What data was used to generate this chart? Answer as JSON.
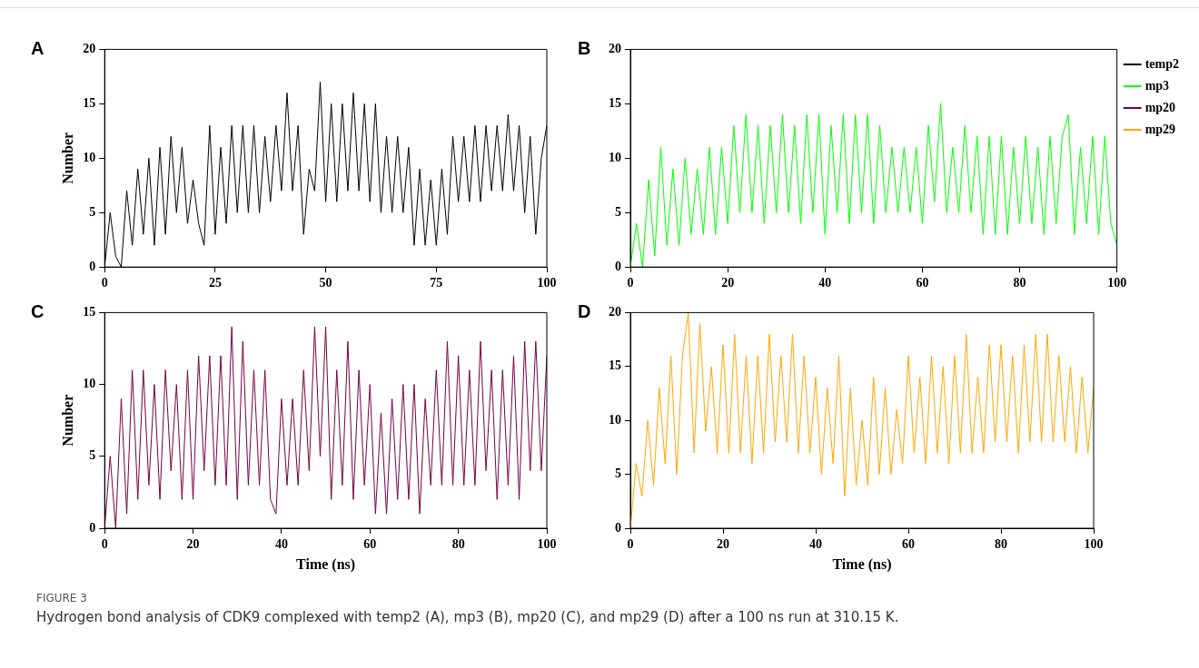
{
  "chart_data": [
    {
      "type": "line",
      "title": "A",
      "ylabel": "Number",
      "xlim": [
        0,
        100
      ],
      "ylim": [
        0,
        20
      ],
      "xticks": [
        0,
        25,
        50,
        75,
        100
      ],
      "yticks": [
        0,
        5,
        10,
        15,
        20
      ],
      "grid": false,
      "legend": false,
      "marker": "none",
      "x": [
        0,
        1.25,
        2.5,
        3.75,
        5,
        6.25,
        7.5,
        8.75,
        10,
        11.25,
        12.5,
        13.75,
        15,
        16.25,
        17.5,
        18.75,
        20,
        21.25,
        22.5,
        23.75,
        25,
        26.25,
        27.5,
        28.75,
        30,
        31.25,
        32.5,
        33.75,
        35,
        36.25,
        37.5,
        38.75,
        40,
        41.25,
        42.5,
        43.75,
        45,
        46.25,
        47.5,
        48.75,
        50,
        51.25,
        52.5,
        53.75,
        55,
        56.25,
        57.5,
        58.75,
        60,
        61.25,
        62.5,
        63.75,
        65,
        66.25,
        67.5,
        68.75,
        70,
        71.25,
        72.5,
        73.75,
        75,
        76.25,
        77.5,
        78.75,
        80,
        81.25,
        82.5,
        83.75,
        85,
        86.25,
        87.5,
        88.75,
        90,
        91.25,
        92.5,
        93.75,
        95,
        96.25,
        97.5,
        98.75,
        100
      ],
      "series": [
        {
          "name": "temp2",
          "color": "#000000",
          "values": [
            0,
            5,
            1,
            0,
            7,
            2,
            9,
            3,
            10,
            2,
            11,
            3,
            12,
            5,
            11,
            4,
            8,
            4,
            2,
            13,
            3,
            11,
            4,
            13,
            5,
            13,
            5,
            13,
            5,
            12,
            6,
            13,
            7,
            16,
            7,
            13,
            3,
            9,
            7,
            17,
            6,
            15,
            6,
            15,
            7,
            16,
            7,
            15,
            6,
            15,
            5,
            12,
            5,
            12,
            5,
            11,
            2,
            9,
            2,
            8,
            2,
            9,
            3,
            12,
            6,
            12,
            6,
            13,
            6,
            13,
            7,
            13,
            7,
            14,
            7,
            13,
            5,
            12,
            3,
            10,
            13
          ]
        }
      ]
    },
    {
      "type": "line",
      "title": "B",
      "xlim": [
        0,
        100
      ],
      "ylim": [
        0,
        20
      ],
      "xticks": [
        0,
        20,
        40,
        60,
        80,
        100
      ],
      "yticks": [
        0,
        5,
        10,
        15,
        20
      ],
      "grid": false,
      "legend": "right",
      "marker": "none",
      "x": [
        0,
        1.25,
        2.5,
        3.75,
        5,
        6.25,
        7.5,
        8.75,
        10,
        11.25,
        12.5,
        13.75,
        15,
        16.25,
        17.5,
        18.75,
        20,
        21.25,
        22.5,
        23.75,
        25,
        26.25,
        27.5,
        28.75,
        30,
        31.25,
        32.5,
        33.75,
        35,
        36.25,
        37.5,
        38.75,
        40,
        41.25,
        42.5,
        43.75,
        45,
        46.25,
        47.5,
        48.75,
        50,
        51.25,
        52.5,
        53.75,
        55,
        56.25,
        57.5,
        58.75,
        60,
        61.25,
        62.5,
        63.75,
        65,
        66.25,
        67.5,
        68.75,
        70,
        71.25,
        72.5,
        73.75,
        75,
        76.25,
        77.5,
        78.75,
        80,
        81.25,
        82.5,
        83.75,
        85,
        86.25,
        87.5,
        88.75,
        90,
        91.25,
        92.5,
        93.75,
        95,
        96.25,
        97.5,
        98.75,
        100
      ],
      "series": [
        {
          "name": "mp3",
          "color": "#00ff00",
          "values": [
            0,
            4,
            0,
            8,
            1,
            11,
            2,
            9,
            2,
            10,
            3,
            9,
            3,
            11,
            3,
            11,
            4,
            13,
            5,
            14,
            5,
            13,
            4,
            13,
            5,
            14,
            5,
            13,
            4,
            14,
            5,
            14,
            3,
            13,
            5,
            14,
            4,
            14,
            5,
            14,
            4,
            13,
            5,
            11,
            5,
            11,
            5,
            11,
            4,
            13,
            6,
            15,
            5,
            11,
            5,
            13,
            5,
            12,
            3,
            12,
            3,
            12,
            3,
            11,
            4,
            12,
            4,
            11,
            3,
            12,
            4,
            12,
            14,
            3,
            11,
            4,
            12,
            3,
            12,
            4,
            2
          ]
        }
      ]
    },
    {
      "type": "line",
      "title": "C",
      "xlabel": "Time (ns)",
      "ylabel": "Number",
      "xlim": [
        0,
        100
      ],
      "ylim": [
        0,
        15
      ],
      "xticks": [
        0,
        20,
        40,
        60,
        80,
        100
      ],
      "yticks": [
        0,
        5,
        10,
        15
      ],
      "grid": false,
      "legend": false,
      "marker": "none",
      "x": [
        0,
        1.25,
        2.5,
        3.75,
        5,
        6.25,
        7.5,
        8.75,
        10,
        11.25,
        12.5,
        13.75,
        15,
        16.25,
        17.5,
        18.75,
        20,
        21.25,
        22.5,
        23.75,
        25,
        26.25,
        27.5,
        28.75,
        30,
        31.25,
        32.5,
        33.75,
        35,
        36.25,
        37.5,
        38.75,
        40,
        41.25,
        42.5,
        43.75,
        45,
        46.25,
        47.5,
        48.75,
        50,
        51.25,
        52.5,
        53.75,
        55,
        56.25,
        57.5,
        58.75,
        60,
        61.25,
        62.5,
        63.75,
        65,
        66.25,
        67.5,
        68.75,
        70,
        71.25,
        72.5,
        73.75,
        75,
        76.25,
        77.5,
        78.75,
        80,
        81.25,
        82.5,
        83.75,
        85,
        86.25,
        87.5,
        88.75,
        90,
        91.25,
        92.5,
        93.75,
        95,
        96.25,
        97.5,
        98.75,
        100
      ],
      "series": [
        {
          "name": "mp20",
          "color": "#750043",
          "values": [
            0,
            5,
            0,
            9,
            1,
            11,
            2,
            11,
            3,
            10,
            2,
            11,
            4,
            10,
            2,
            11,
            2,
            12,
            4,
            12,
            3,
            12,
            3,
            14,
            2,
            13,
            3,
            11,
            3,
            11,
            2,
            1,
            9,
            3,
            9,
            3,
            11,
            4,
            14,
            5,
            14,
            2,
            11,
            3,
            13,
            2,
            11,
            3,
            10,
            1,
            8,
            1,
            9,
            2,
            10,
            2,
            10,
            1,
            9,
            3,
            11,
            3,
            13,
            3,
            12,
            3,
            11,
            3,
            13,
            4,
            11,
            2,
            11,
            3,
            12,
            2,
            13,
            4,
            13,
            4,
            12
          ]
        }
      ]
    },
    {
      "type": "line",
      "title": "D",
      "xlabel": "Time (ns)",
      "xlim": [
        0,
        100
      ],
      "ylim": [
        0,
        20
      ],
      "xticks": [
        0,
        20,
        40,
        60,
        80,
        100
      ],
      "yticks": [
        0,
        5,
        10,
        15,
        20
      ],
      "grid": false,
      "legend": false,
      "marker": "none",
      "x": [
        0,
        1.25,
        2.5,
        3.75,
        5,
        6.25,
        7.5,
        8.75,
        10,
        11.25,
        12.5,
        13.75,
        15,
        16.25,
        17.5,
        18.75,
        20,
        21.25,
        22.5,
        23.75,
        25,
        26.25,
        27.5,
        28.75,
        30,
        31.25,
        32.5,
        33.75,
        35,
        36.25,
        37.5,
        38.75,
        40,
        41.25,
        42.5,
        43.75,
        45,
        46.25,
        47.5,
        48.75,
        50,
        51.25,
        52.5,
        53.75,
        55,
        56.25,
        57.5,
        58.75,
        60,
        61.25,
        62.5,
        63.75,
        65,
        66.25,
        67.5,
        68.75,
        70,
        71.25,
        72.5,
        73.75,
        75,
        76.25,
        77.5,
        78.75,
        80,
        81.25,
        82.5,
        83.75,
        85,
        86.25,
        87.5,
        88.75,
        90,
        91.25,
        92.5,
        93.75,
        95,
        96.25,
        97.5,
        98.75,
        100
      ],
      "series": [
        {
          "name": "mp29",
          "color": "#ffa500",
          "values": [
            0,
            6,
            3,
            10,
            4,
            13,
            6,
            16,
            5,
            16,
            20,
            7,
            19,
            9,
            15,
            7,
            17,
            7,
            18,
            7,
            16,
            6,
            16,
            7,
            18,
            8,
            16,
            8,
            18,
            7,
            16,
            7,
            14,
            5,
            13,
            6,
            16,
            3,
            13,
            4,
            10,
            4,
            14,
            5,
            13,
            5,
            11,
            6,
            16,
            7,
            14,
            6,
            16,
            7,
            15,
            6,
            16,
            7,
            18,
            7,
            14,
            7,
            17,
            8,
            17,
            8,
            16,
            7,
            17,
            8,
            18,
            8,
            18,
            8,
            16,
            8,
            15,
            7,
            14,
            7,
            13
          ]
        }
      ]
    },
    {
      "type": "other",
      "title": "FIGURE 3",
      "annotations": [
        "Hydrogen bond analysis of CDK9 complexed with temp2 (A), mp3 (B), mp20 (C), and mp29 (D) after a 100 ns run at 310.15 K."
      ]
    }
  ]
}
